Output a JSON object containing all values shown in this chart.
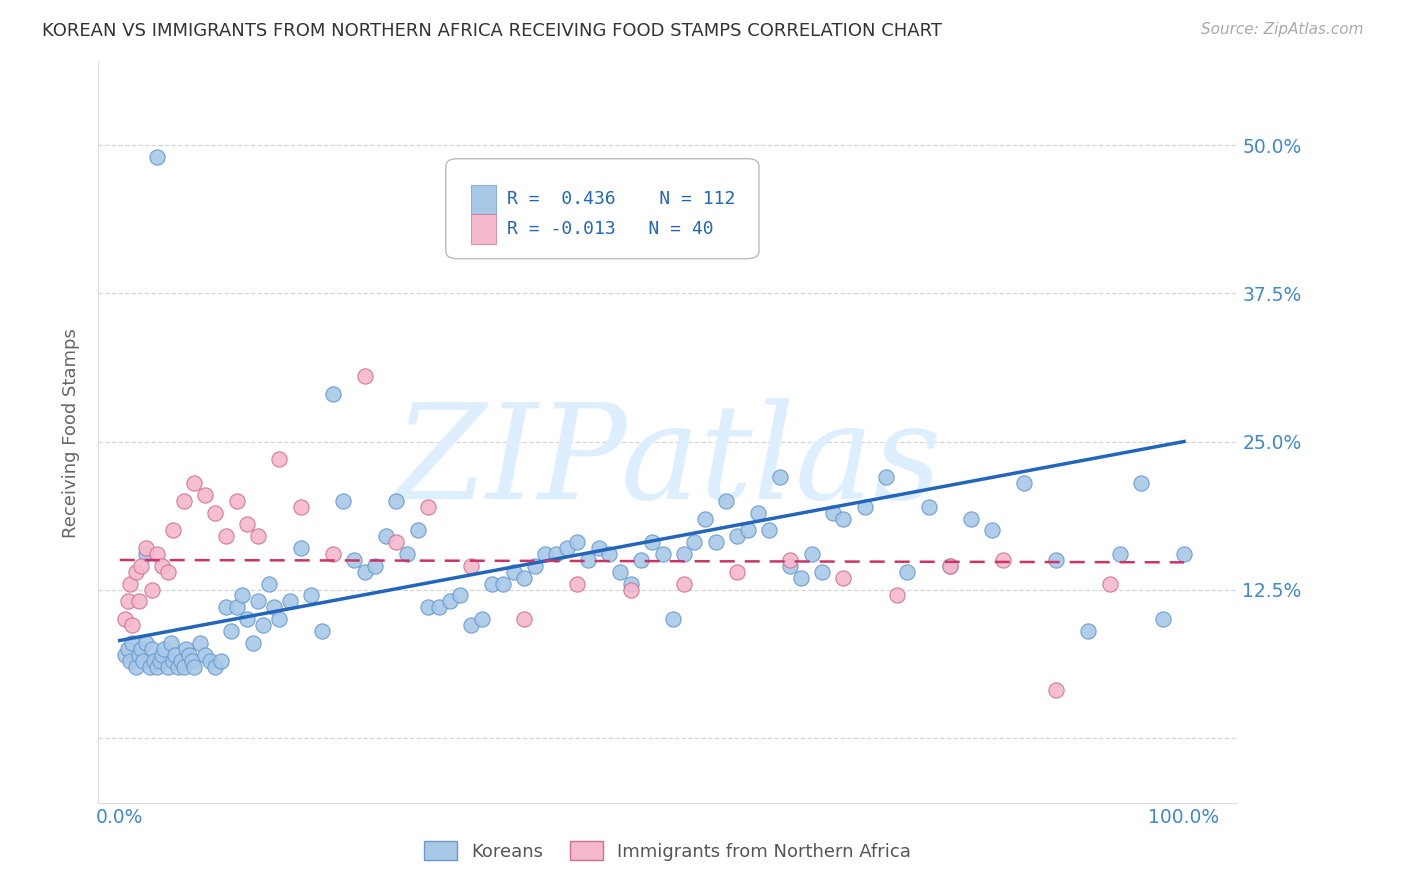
{
  "title": "KOREAN VS IMMIGRANTS FROM NORTHERN AFRICA RECEIVING FOOD STAMPS CORRELATION CHART",
  "source": "Source: ZipAtlas.com",
  "ylabel": "Receiving Food Stamps",
  "ytick_values": [
    0.0,
    0.125,
    0.25,
    0.375,
    0.5
  ],
  "ytick_labels": [
    "",
    "12.5%",
    "25.0%",
    "37.5%",
    "50.0%"
  ],
  "xlim": [
    -0.02,
    1.05
  ],
  "ylim": [
    -0.055,
    0.57
  ],
  "korean_color": "#a8c8e8",
  "korean_color_edge": "#6699cc",
  "nafrica_color": "#f5b8cc",
  "nafrica_color_edge": "#d07090",
  "line_korean_color": "#2266bb",
  "line_nafrica_color": "#cc3366",
  "watermark_color": "#ddeeff",
  "legend_r_korean": "R =  0.436",
  "legend_n_korean": "N = 112",
  "legend_r_nafrica": "R = -0.013",
  "legend_n_nafrica": "N = 40",
  "korean_x": [
    0.005,
    0.008,
    0.01,
    0.012,
    0.015,
    0.018,
    0.02,
    0.022,
    0.025,
    0.028,
    0.03,
    0.032,
    0.035,
    0.038,
    0.04,
    0.042,
    0.045,
    0.048,
    0.05,
    0.052,
    0.055,
    0.058,
    0.06,
    0.062,
    0.065,
    0.068,
    0.07,
    0.075,
    0.08,
    0.085,
    0.09,
    0.095,
    0.1,
    0.105,
    0.11,
    0.115,
    0.12,
    0.125,
    0.13,
    0.135,
    0.14,
    0.145,
    0.15,
    0.16,
    0.17,
    0.18,
    0.19,
    0.2,
    0.21,
    0.22,
    0.23,
    0.24,
    0.25,
    0.26,
    0.27,
    0.28,
    0.29,
    0.3,
    0.31,
    0.32,
    0.33,
    0.34,
    0.35,
    0.36,
    0.37,
    0.38,
    0.39,
    0.4,
    0.41,
    0.42,
    0.43,
    0.44,
    0.45,
    0.46,
    0.47,
    0.48,
    0.49,
    0.5,
    0.51,
    0.52,
    0.53,
    0.54,
    0.55,
    0.56,
    0.57,
    0.58,
    0.59,
    0.6,
    0.61,
    0.62,
    0.63,
    0.64,
    0.65,
    0.66,
    0.67,
    0.68,
    0.7,
    0.72,
    0.74,
    0.76,
    0.78,
    0.8,
    0.82,
    0.85,
    0.88,
    0.91,
    0.94,
    0.96,
    0.98,
    1.0,
    0.025,
    0.035
  ],
  "korean_y": [
    0.07,
    0.075,
    0.065,
    0.08,
    0.06,
    0.07,
    0.075,
    0.065,
    0.08,
    0.06,
    0.075,
    0.065,
    0.06,
    0.065,
    0.07,
    0.075,
    0.06,
    0.08,
    0.065,
    0.07,
    0.06,
    0.065,
    0.06,
    0.075,
    0.07,
    0.065,
    0.06,
    0.08,
    0.07,
    0.065,
    0.06,
    0.065,
    0.11,
    0.09,
    0.11,
    0.12,
    0.1,
    0.08,
    0.115,
    0.095,
    0.13,
    0.11,
    0.1,
    0.115,
    0.16,
    0.12,
    0.09,
    0.29,
    0.2,
    0.15,
    0.14,
    0.145,
    0.17,
    0.2,
    0.155,
    0.175,
    0.11,
    0.11,
    0.115,
    0.12,
    0.095,
    0.1,
    0.13,
    0.13,
    0.14,
    0.135,
    0.145,
    0.155,
    0.155,
    0.16,
    0.165,
    0.15,
    0.16,
    0.155,
    0.14,
    0.13,
    0.15,
    0.165,
    0.155,
    0.1,
    0.155,
    0.165,
    0.185,
    0.165,
    0.2,
    0.17,
    0.175,
    0.19,
    0.175,
    0.22,
    0.145,
    0.135,
    0.155,
    0.14,
    0.19,
    0.185,
    0.195,
    0.22,
    0.14,
    0.195,
    0.145,
    0.185,
    0.175,
    0.215,
    0.15,
    0.09,
    0.155,
    0.215,
    0.1,
    0.155,
    0.155,
    0.49
  ],
  "nafrica_x": [
    0.005,
    0.008,
    0.01,
    0.012,
    0.015,
    0.018,
    0.02,
    0.025,
    0.03,
    0.035,
    0.04,
    0.045,
    0.05,
    0.06,
    0.07,
    0.08,
    0.09,
    0.1,
    0.11,
    0.12,
    0.13,
    0.15,
    0.17,
    0.2,
    0.23,
    0.26,
    0.29,
    0.33,
    0.38,
    0.43,
    0.48,
    0.53,
    0.58,
    0.63,
    0.68,
    0.73,
    0.78,
    0.83,
    0.88,
    0.93
  ],
  "nafrica_y": [
    0.1,
    0.115,
    0.13,
    0.095,
    0.14,
    0.115,
    0.145,
    0.16,
    0.125,
    0.155,
    0.145,
    0.14,
    0.175,
    0.2,
    0.215,
    0.205,
    0.19,
    0.17,
    0.2,
    0.18,
    0.17,
    0.235,
    0.195,
    0.155,
    0.305,
    0.165,
    0.195,
    0.145,
    0.1,
    0.13,
    0.125,
    0.13,
    0.14,
    0.15,
    0.135,
    0.12,
    0.145,
    0.15,
    0.04,
    0.13
  ],
  "korean_line_x": [
    0.0,
    1.0
  ],
  "korean_line_y": [
    0.082,
    0.25
  ],
  "nafrica_line_x": [
    0.0,
    1.0
  ],
  "nafrica_line_y": [
    0.15,
    0.148
  ],
  "background_color": "#ffffff",
  "grid_color": "#cccccc",
  "title_color": "#333333",
  "axis_label_color": "#666666",
  "tick_label_color": "#4488cc",
  "legend_text_color": "#2266bb"
}
